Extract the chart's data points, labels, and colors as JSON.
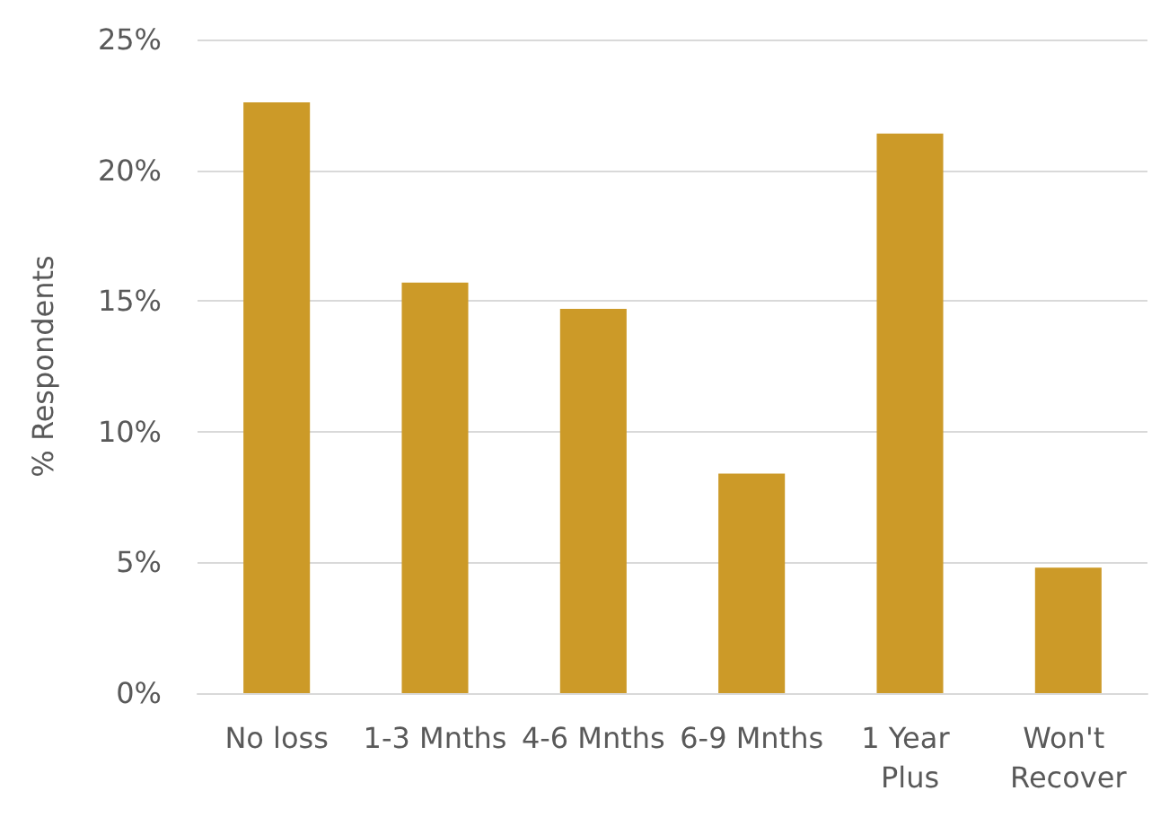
{
  "chart_data": {
    "type": "bar",
    "ylabel": "% Respondents",
    "categories": [
      "No loss",
      "1-3 Mnths",
      "4-6 Mnths",
      "6-9 Mnths",
      "1 Year Plus",
      "Won't Recover"
    ],
    "values": [
      22.6,
      15.7,
      14.7,
      8.4,
      21.4,
      4.8
    ],
    "color": "#cc9a28",
    "ylim": [
      0,
      25
    ],
    "yticks": [
      {
        "value": 0,
        "label": "0%"
      },
      {
        "value": 5,
        "label": "5%"
      },
      {
        "value": 10,
        "label": "10%"
      },
      {
        "value": 15,
        "label": "15%"
      },
      {
        "value": 20,
        "label": "20%"
      },
      {
        "value": 25,
        "label": "25%"
      }
    ],
    "grid": "y"
  }
}
